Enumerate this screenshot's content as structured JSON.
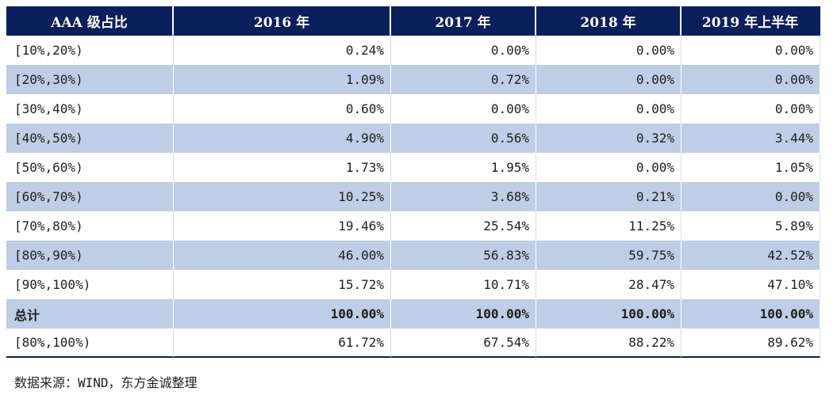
{
  "table": {
    "headers": [
      "AAA 级占比",
      "2016 年",
      "2017 年",
      "2018 年",
      "2019 年上半年"
    ],
    "rows": [
      {
        "label": "[10%,20%)",
        "values": [
          "0.24%",
          "0.00%",
          "0.00%",
          "0.00%"
        ]
      },
      {
        "label": "[20%,30%)",
        "values": [
          "1.09%",
          "0.72%",
          "0.00%",
          "0.00%"
        ]
      },
      {
        "label": "[30%,40%)",
        "values": [
          "0.60%",
          "0.00%",
          "0.00%",
          "0.00%"
        ]
      },
      {
        "label": "[40%,50%)",
        "values": [
          "4.90%",
          "0.56%",
          "0.32%",
          "3.44%"
        ]
      },
      {
        "label": "[50%,60%)",
        "values": [
          "1.73%",
          "1.95%",
          "0.00%",
          "1.05%"
        ]
      },
      {
        "label": "[60%,70%)",
        "values": [
          "10.25%",
          "3.68%",
          "0.21%",
          "0.00%"
        ]
      },
      {
        "label": "[70%,80%)",
        "values": [
          "19.46%",
          "25.54%",
          "11.25%",
          "5.89%"
        ]
      },
      {
        "label": "[80%,90%)",
        "values": [
          "46.00%",
          "56.83%",
          "59.75%",
          "42.52%"
        ]
      },
      {
        "label": "[90%,100%)",
        "values": [
          "15.72%",
          "10.71%",
          "28.47%",
          "47.10%"
        ]
      },
      {
        "label": "总计",
        "values": [
          "100.00%",
          "100.00%",
          "100.00%",
          "100.00%"
        ],
        "bold": true
      },
      {
        "label": "[80%,100%)",
        "values": [
          "61.72%",
          "67.54%",
          "88.22%",
          "89.62%"
        ]
      }
    ]
  },
  "source_note": "数据来源：WIND，东方金诚整理",
  "colors": {
    "header_bg": "#0b1f5c",
    "header_text": "#ffffff",
    "stripe": "#bfcde6",
    "row_bg": "#ffffff"
  }
}
